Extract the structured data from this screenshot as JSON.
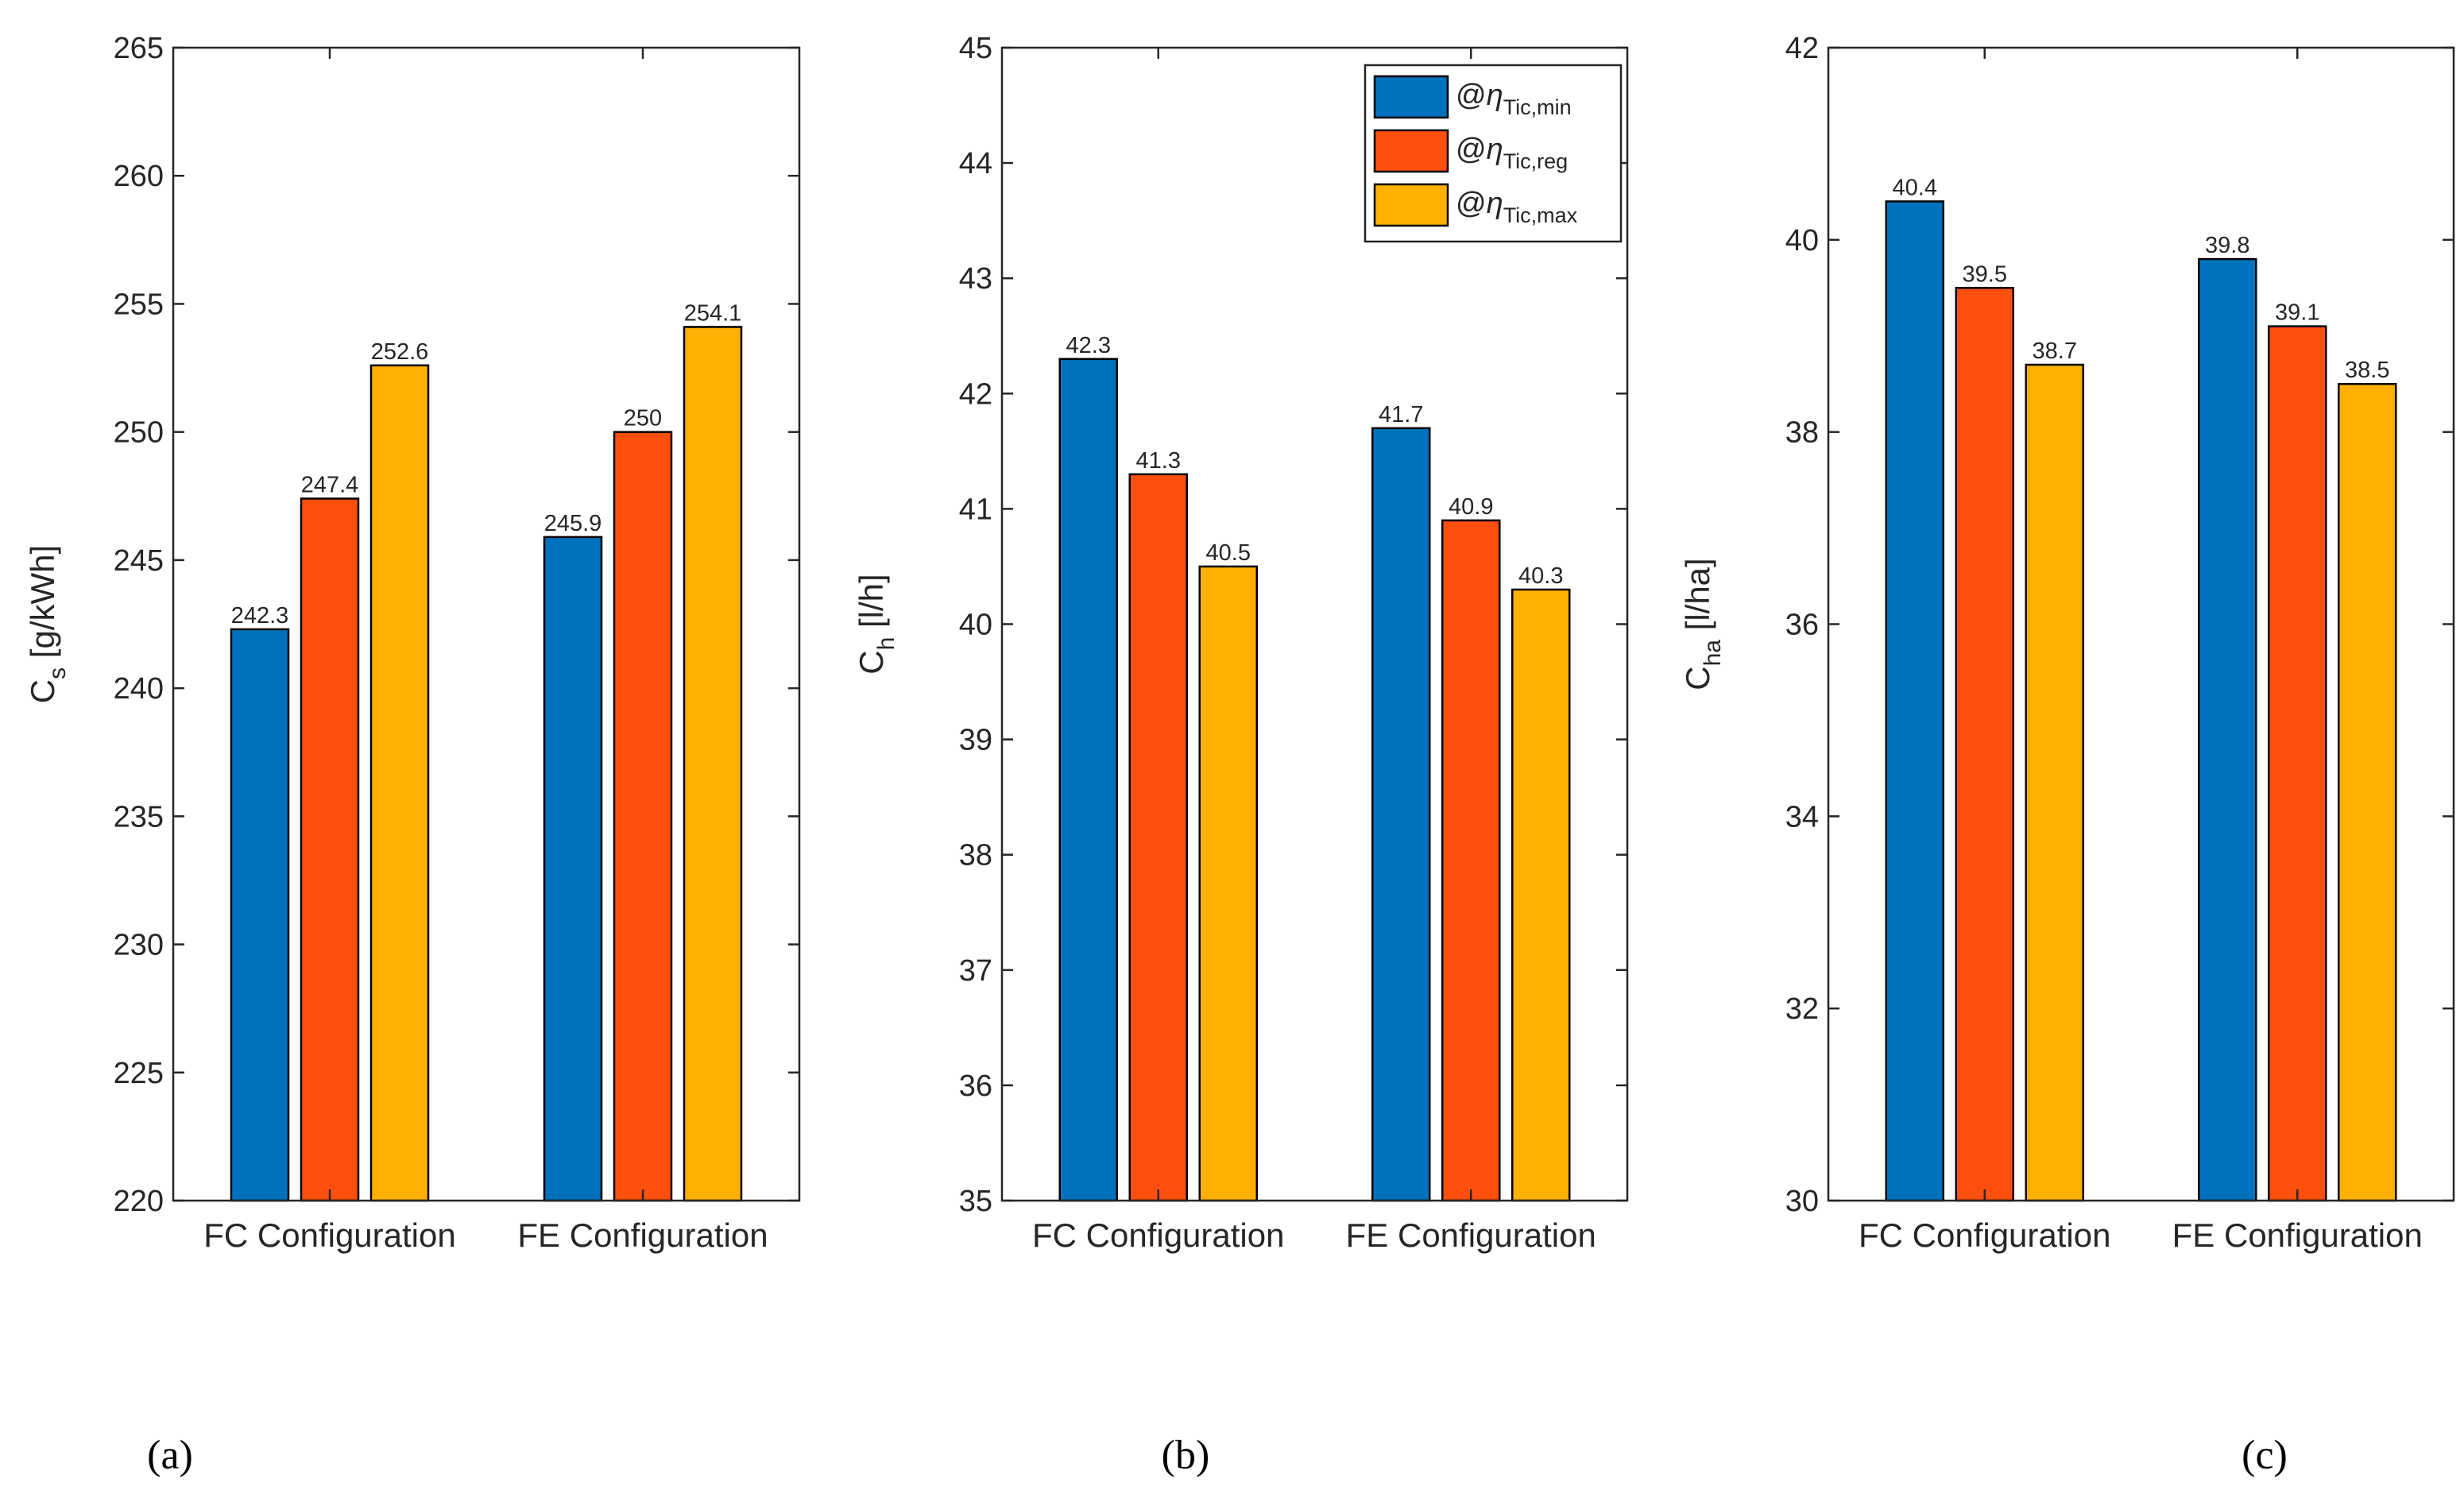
{
  "chart_data": [
    {
      "type": "bar",
      "panel_label": "(a)",
      "categories": [
        "FC Configuration",
        "FE Configuration"
      ],
      "ylabel": {
        "main": "C",
        "sub": "s",
        "units": "[g/kWh]"
      },
      "ylim": [
        220,
        265
      ],
      "yticks": [
        220,
        225,
        230,
        235,
        240,
        245,
        250,
        255,
        260,
        265
      ],
      "series": [
        {
          "name": "@ηTic,min",
          "values": [
            242.3,
            245.9
          ],
          "labels": [
            "242.3",
            "245.9"
          ]
        },
        {
          "name": "@ηTic,reg",
          "values": [
            247.4,
            250
          ],
          "labels": [
            "247.4",
            "250"
          ]
        },
        {
          "name": "@ηTic,max",
          "values": [
            252.6,
            254.1
          ],
          "labels": [
            "252.6",
            "254.1"
          ]
        }
      ]
    },
    {
      "type": "bar",
      "panel_label": "(b)",
      "categories": [
        "FC Configuration",
        "FE Configuration"
      ],
      "ylabel": {
        "main": "C",
        "sub": "h",
        "units": "[l/h]"
      },
      "ylim": [
        35,
        45
      ],
      "yticks": [
        35,
        36,
        37,
        38,
        39,
        40,
        41,
        42,
        43,
        44,
        45
      ],
      "series": [
        {
          "name": "@ηTic,min",
          "values": [
            42.3,
            41.7
          ],
          "labels": [
            "42.3",
            "41.7"
          ]
        },
        {
          "name": "@ηTic,reg",
          "values": [
            41.3,
            40.9
          ],
          "labels": [
            "41.3",
            "40.9"
          ]
        },
        {
          "name": "@ηTic,max",
          "values": [
            40.5,
            40.3
          ],
          "labels": [
            "40.5",
            "40.3"
          ]
        }
      ]
    },
    {
      "type": "bar",
      "panel_label": "(c)",
      "categories": [
        "FC Configuration",
        "FE Configuration"
      ],
      "ylabel": {
        "main": "C",
        "sub": "ha",
        "units": "[l/ha]"
      },
      "ylim": [
        30,
        42
      ],
      "yticks": [
        30,
        32,
        34,
        36,
        38,
        40,
        42
      ],
      "series": [
        {
          "name": "@ηTic,min",
          "values": [
            40.4,
            39.8
          ],
          "labels": [
            "40.4",
            "39.8"
          ]
        },
        {
          "name": "@ηTic,reg",
          "values": [
            39.5,
            39.1
          ],
          "labels": [
            "39.5",
            "39.1"
          ]
        },
        {
          "name": "@ηTic,max",
          "values": [
            38.7,
            38.5
          ],
          "labels": [
            "38.7",
            "38.5"
          ]
        }
      ]
    }
  ],
  "legend": {
    "placement": "top-right of panel (b)",
    "items": [
      {
        "prefix": "@",
        "symbol": "η",
        "sub": "Tic,min",
        "color": "#0072BD"
      },
      {
        "prefix": "@",
        "symbol": "η",
        "sub": "Tic,reg",
        "color": "#FF4F0F"
      },
      {
        "prefix": "@",
        "symbol": "η",
        "sub": "Tic,max",
        "color": "#FFB000"
      }
    ]
  },
  "colors": {
    "series": [
      "#0072BD",
      "#FF4F0F",
      "#FFB000"
    ],
    "axis": "#262626",
    "bar_edge": "#000000"
  }
}
